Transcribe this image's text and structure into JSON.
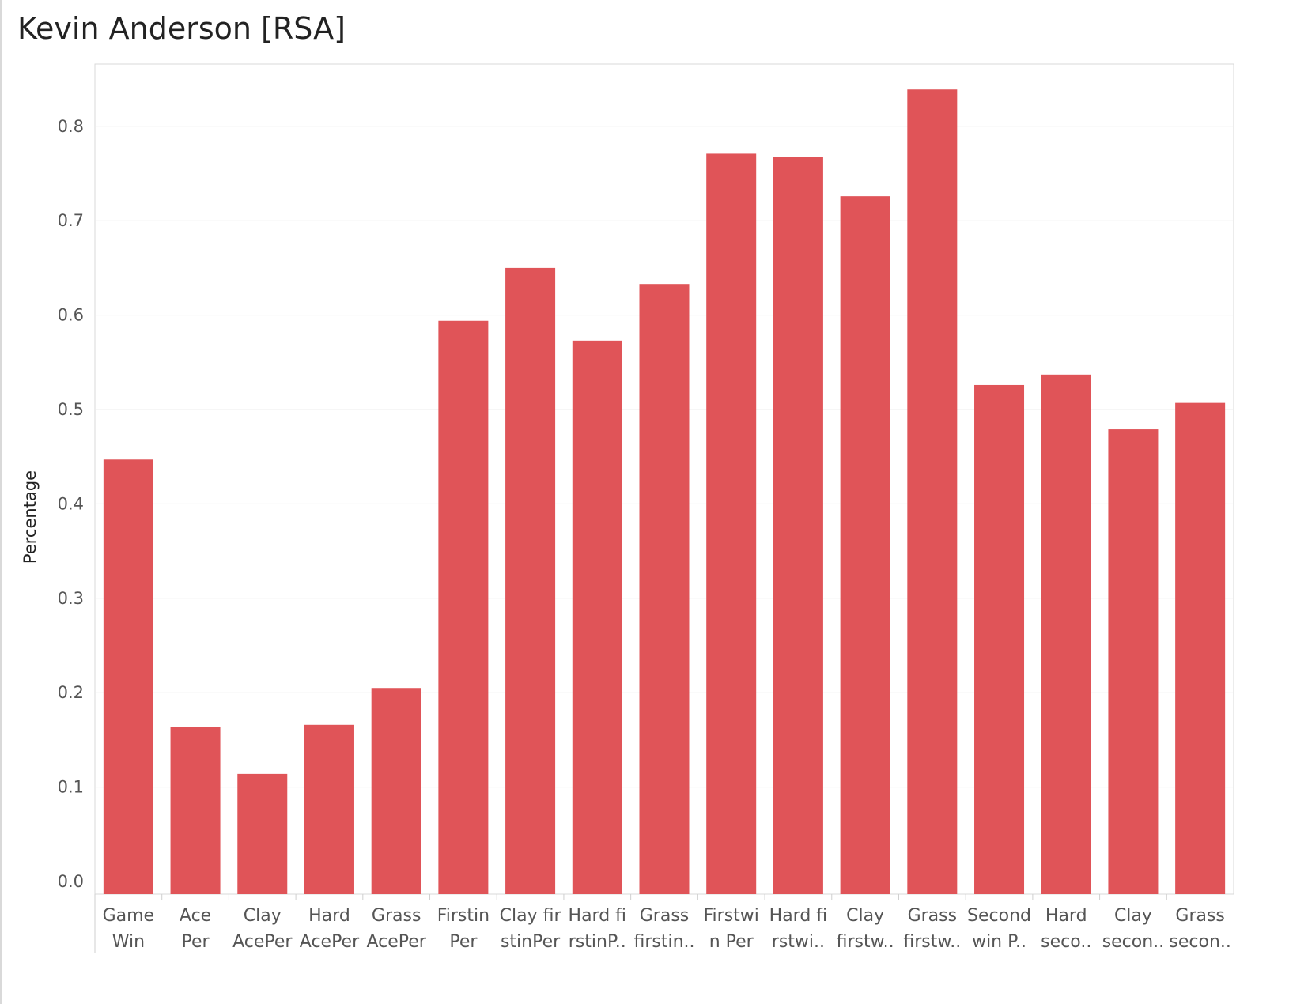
{
  "chart_data": {
    "type": "bar",
    "title": "Kevin Anderson [RSA]",
    "xlabel": "",
    "ylabel": "Percentage",
    "ylim": [
      0,
      0.88
    ],
    "yticks": [
      "0.0",
      "0.1",
      "0.2",
      "0.3",
      "0.4",
      "0.5",
      "0.6",
      "0.7",
      "0.8"
    ],
    "grid": true,
    "bar_color": "#e05458",
    "categories": [
      [
        "Game",
        "Win"
      ],
      [
        "Ace",
        "Per"
      ],
      [
        "Clay",
        "AcePer"
      ],
      [
        "Hard",
        "AcePer"
      ],
      [
        "Grass",
        "AcePer"
      ],
      [
        "Firstin",
        "Per"
      ],
      [
        "Clay fir",
        "stinPer"
      ],
      [
        "Hard fi",
        "rstinP.."
      ],
      [
        "Grass",
        "firstin.."
      ],
      [
        "Firstwi",
        "n Per"
      ],
      [
        "Hard fi",
        "rstwi.."
      ],
      [
        "Clay",
        "firstw.."
      ],
      [
        "Grass",
        "firstw.."
      ],
      [
        "Second",
        "win P.."
      ],
      [
        "Hard",
        "seco.."
      ],
      [
        "Clay",
        "secon.."
      ],
      [
        "Grass",
        "secon.."
      ]
    ],
    "values": [
      0.447,
      0.164,
      0.114,
      0.166,
      0.205,
      0.594,
      0.65,
      0.573,
      0.633,
      0.771,
      0.768,
      0.726,
      0.839,
      0.526,
      0.537,
      0.479,
      0.507
    ]
  }
}
